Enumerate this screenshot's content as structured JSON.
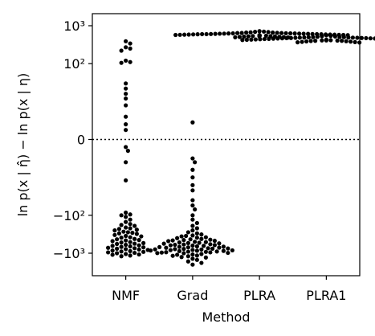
{
  "chart_data": {
    "type": "scatter",
    "style": "swarm",
    "xlabel": "Method",
    "ylabel": "ln p(x | η̂) − ln p(x | η)",
    "y_scale": "symlog",
    "y_ticks": [
      {
        "value": 1000,
        "label": "10³"
      },
      {
        "value": 100,
        "label": "10²"
      },
      {
        "value": 0,
        "label": "0"
      },
      {
        "value": -100,
        "label": "−10²"
      },
      {
        "value": -1000,
        "label": "−10³"
      }
    ],
    "reference_line": {
      "y": 0,
      "style": "dotted"
    },
    "grid": false,
    "marker_color": "#000000",
    "categories": [
      "NMF",
      "Grad",
      "PLRA",
      "PLRA1"
    ],
    "series": [
      {
        "category": "NMF",
        "values": [
          390,
          340,
          270,
          250,
          220,
          120,
          110,
          105,
          30,
          22,
          16,
          12,
          9,
          6,
          4,
          2.5,
          -2,
          -3,
          -6,
          -12,
          -85,
          -95,
          -100,
          -110,
          -130,
          -150,
          -170,
          -190,
          -210,
          -230,
          -250,
          -270,
          -290,
          -310,
          -330,
          -360,
          -390,
          -420,
          -450,
          -480,
          -510,
          -540,
          -570,
          -600,
          -640,
          -680,
          -720,
          -760,
          -800,
          -850,
          -900,
          -950,
          -1000,
          -1050,
          -1100,
          -1150,
          -1200,
          -220,
          -280,
          -350,
          -430,
          -520,
          -620,
          -700,
          -780,
          -880,
          -980,
          -1080,
          -180,
          -240,
          -300,
          -380,
          -460,
          -560,
          -660,
          -740,
          -820,
          -920
        ]
      },
      {
        "category": "Grad",
        "values": [
          4.5,
          -5,
          -6,
          -8,
          -10,
          -16,
          -22,
          -40,
          -55,
          -70,
          -100,
          -130,
          -160,
          -190,
          -220,
          -250,
          -280,
          -300,
          -320,
          -340,
          -360,
          -380,
          -400,
          -420,
          -440,
          -460,
          -480,
          -500,
          -520,
          -540,
          -560,
          -580,
          -600,
          -620,
          -640,
          -660,
          -680,
          -700,
          -720,
          -740,
          -760,
          -780,
          -800,
          -820,
          -840,
          -860,
          -880,
          -900,
          -920,
          -940,
          -960,
          -980,
          -1000,
          -1050,
          -1100,
          -1150,
          -1200,
          -1300,
          -1400,
          -1500,
          -1650,
          -1800,
          -2000,
          -350,
          -390,
          -430,
          -470,
          -510,
          -550,
          -590,
          -630,
          -670,
          -710,
          -750,
          -790,
          -830,
          -870,
          -910,
          -950,
          -990,
          -1080,
          -1170,
          -1260,
          -450,
          -530,
          -610,
          -690,
          -770,
          -850
        ]
      },
      {
        "category": "PLRA",
        "values": [
          720,
          700,
          690,
          680,
          670,
          660,
          650,
          645,
          640,
          635,
          630,
          625,
          620,
          615,
          610,
          605,
          600,
          595,
          590,
          585,
          580,
          575,
          570,
          565,
          560,
          555,
          550,
          545,
          540,
          535,
          530,
          525,
          520,
          515,
          510,
          505,
          500,
          495,
          490,
          660,
          640,
          620,
          600,
          580,
          560,
          540,
          520,
          610,
          590,
          570,
          550,
          630,
          605,
          585,
          565,
          545,
          615,
          595,
          575,
          555,
          625,
          600
        ]
      },
      {
        "category": "PLRA1",
        "values": [
          560,
          540,
          530,
          520,
          510,
          505,
          500,
          495,
          490,
          485,
          480,
          475,
          470,
          465,
          460,
          455,
          450,
          445,
          440,
          435,
          430,
          425,
          420,
          415,
          410,
          405,
          400,
          395,
          390,
          385,
          380,
          375,
          370,
          365,
          360,
          500,
          480,
          460,
          440,
          420,
          400,
          470,
          450,
          430,
          410,
          490,
          465,
          445,
          425,
          475,
          455,
          435,
          415,
          485,
          460
        ]
      }
    ]
  }
}
